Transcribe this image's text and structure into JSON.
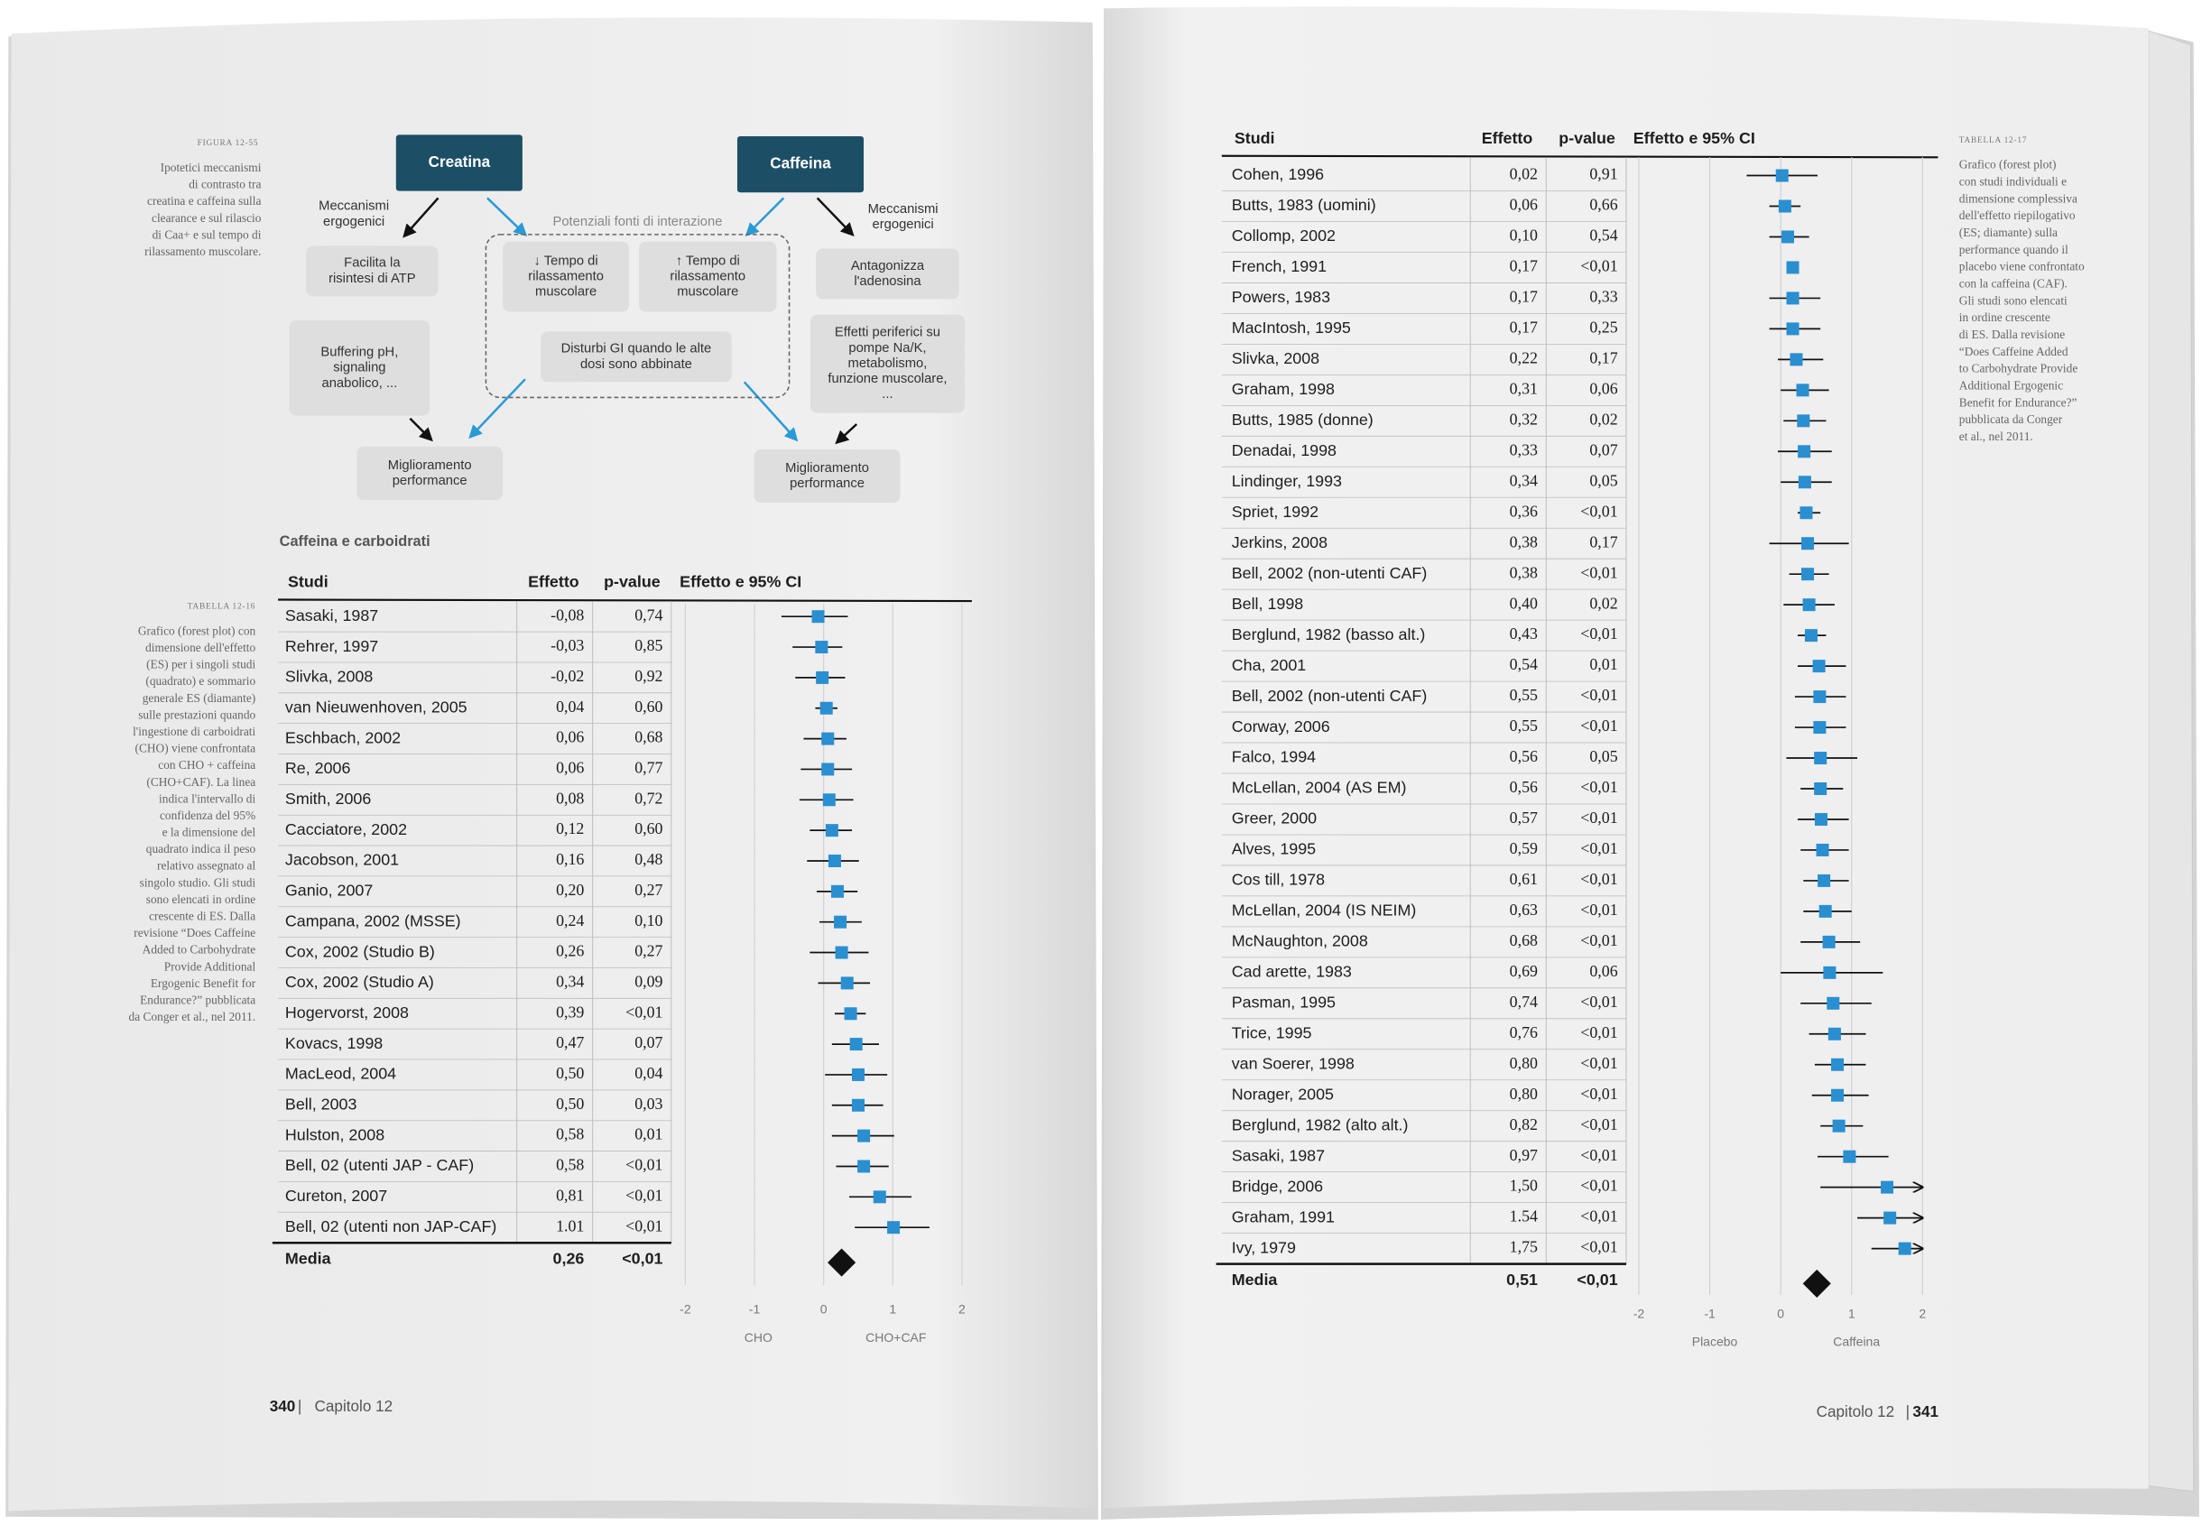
{
  "figure_caption": {
    "label": "FIGURA 12-55",
    "lines": [
      "Ipotetici meccanismi",
      "di contrasto tra",
      "creatina e caffeina sulla",
      "clearance e sul rilascio",
      "di Caa+ e sul tempo di",
      "rilassamento muscolare."
    ]
  },
  "diagram": {
    "nodes": [
      {
        "lines": [
          "Creatina"
        ]
      },
      {
        "lines": [
          "Caffeina"
        ]
      },
      {
        "lines": [
          "Meccanismi",
          "ergogenici"
        ]
      },
      {
        "lines": [
          "Meccanismi",
          "ergogenici"
        ]
      },
      {
        "lines": [
          "Potenziali fonti di interazione"
        ]
      },
      {
        "lines": [
          "Facilita la",
          "risintesi di ATP"
        ]
      },
      {
        "lines": [
          "↓ Tempo di",
          "rilassamento",
          "muscolare"
        ]
      },
      {
        "lines": [
          "↑ Tempo di",
          "rilassamento",
          "muscolare"
        ]
      },
      {
        "lines": [
          "Antagonizza",
          "l'adenosina"
        ]
      },
      {
        "lines": [
          "Buffering pH,",
          "signaling",
          "anabolico, ..."
        ]
      },
      {
        "lines": [
          "Disturbi GI quando le alte",
          "dosi sono abbinate"
        ]
      },
      {
        "lines": [
          "Effetti periferici su",
          "pompe Na/K,",
          "metabolismo,",
          "funzione muscolare,",
          "..."
        ]
      },
      {
        "lines": [
          "Miglioramento",
          "performance"
        ]
      },
      {
        "lines": [
          "Miglioramento",
          "performance"
        ]
      }
    ]
  },
  "section_title": "Caffeina e carboidrati",
  "left_table": {
    "caption": {
      "label": "TABELLA 12-16",
      "lines": [
        "Grafico (forest plot) con",
        "dimensione dell'effetto",
        "(ES) per i singoli studi",
        "(quadrato) e sommario",
        "generale ES (diamante)",
        "sulle prestazioni quando",
        "l'ingestione di carboidrati",
        "(CHO) viene confrontata",
        "con CHO + caffeina",
        "(CHO+CAF). La linea",
        "indica l'intervallo di",
        "confidenza del 95%",
        "e la dimensione del",
        "quadrato indica il peso",
        "relativo assegnato al",
        "singolo studio. Gli studi",
        "sono elencati in ordine",
        "crescente di ES. Dalla",
        "revisione “Does Caffeine",
        "Added to Carbohydrate",
        "Provide Additional",
        "Ergogenic Benefit for",
        "Endurance?” pubblicata",
        "da Conger et al., nel 2011."
      ]
    },
    "columns": [
      "Studi",
      "Effetto",
      "p-value",
      "Effetto e 95% CI"
    ],
    "rows": [
      {
        "study": "Sasaki, 1987",
        "effect": -0.08,
        "effect_label": "-0,08",
        "p": "0,74",
        "ci": [
          -0.61,
          0.35
        ]
      },
      {
        "study": "Rehrer, 1997",
        "effect": -0.03,
        "effect_label": "-0,03",
        "p": "0,85",
        "ci": [
          -0.45,
          0.27
        ]
      },
      {
        "study": "Slivka, 2008",
        "effect": -0.02,
        "effect_label": "-0,02",
        "p": "0,92",
        "ci": [
          -0.41,
          0.31
        ]
      },
      {
        "study": "van Nieuwenhoven, 2005",
        "effect": 0.04,
        "effect_label": "0,04",
        "p": "0,60",
        "ci": [
          -0.12,
          0.2
        ]
      },
      {
        "study": "Eschbach, 2002",
        "effect": 0.06,
        "effect_label": "0,06",
        "p": "0,68",
        "ci": [
          -0.29,
          0.33
        ]
      },
      {
        "study": "Re, 2006",
        "effect": 0.06,
        "effect_label": "0,06",
        "p": "0,77",
        "ci": [
          -0.33,
          0.41
        ]
      },
      {
        "study": "Smith, 2006",
        "effect": 0.08,
        "effect_label": "0,08",
        "p": "0,72",
        "ci": [
          -0.35,
          0.43
        ]
      },
      {
        "study": "Cacciatore, 2002",
        "effect": 0.12,
        "effect_label": "0,12",
        "p": "0,60",
        "ci": [
          -0.2,
          0.41
        ]
      },
      {
        "study": "Jacobson, 2001",
        "effect": 0.16,
        "effect_label": "0,16",
        "p": "0,48",
        "ci": [
          -0.24,
          0.51
        ]
      },
      {
        "study": "Ganio, 2007",
        "effect": 0.2,
        "effect_label": "0,20",
        "p": "0,27",
        "ci": [
          -0.1,
          0.49
        ]
      },
      {
        "study": "Campana, 2002 (MSSE)",
        "effect": 0.24,
        "effect_label": "0,24",
        "p": "0,10",
        "ci": [
          -0.06,
          0.55
        ]
      },
      {
        "study": "Cox, 2002 (Studio B)",
        "effect": 0.26,
        "effect_label": "0,26",
        "p": "0,27",
        "ci": [
          -0.2,
          0.65
        ]
      },
      {
        "study": "Cox, 2002 (Studio A)",
        "effect": 0.34,
        "effect_label": "0,34",
        "p": "0,09",
        "ci": [
          -0.08,
          0.67
        ]
      },
      {
        "study": "Hogervorst, 2008",
        "effect": 0.39,
        "effect_label": "0,39",
        "p": "<0,01",
        "ci": [
          0.16,
          0.61
        ]
      },
      {
        "study": "Kovacs, 1998",
        "effect": 0.47,
        "effect_label": "0,47",
        "p": "0,07",
        "ci": [
          0.12,
          0.8
        ]
      },
      {
        "study": "MacLeod, 2004",
        "effect": 0.5,
        "effect_label": "0,50",
        "p": "0,04",
        "ci": [
          0.02,
          0.92
        ]
      },
      {
        "study": "Bell, 2003",
        "effect": 0.5,
        "effect_label": "0,50",
        "p": "0,03",
        "ci": [
          0.12,
          0.86
        ]
      },
      {
        "study": "Hulston, 2008",
        "effect": 0.58,
        "effect_label": "0,58",
        "p": "0,01",
        "ci": [
          0.12,
          1.02
        ]
      },
      {
        "study": "Bell, 02 (utenti JAP - CAF)",
        "effect": 0.58,
        "effect_label": "0,58",
        "p": "<0,01",
        "ci": [
          0.18,
          0.94
        ]
      },
      {
        "study": "Cureton, 2007",
        "effect": 0.81,
        "effect_label": "0,81",
        "p": "<0,01",
        "ci": [
          0.37,
          1.27
        ]
      },
      {
        "study": "Bell, 02 (utenti non JAP-CAF)",
        "effect": 1.01,
        "effect_label": "1.01",
        "p": "<0,01",
        "ci": [
          0.45,
          1.53
        ]
      }
    ],
    "summary": {
      "study": "Media",
      "effect": 0.26,
      "effect_label": "0,26",
      "p": "<0,01"
    },
    "xlim": [
      -2,
      2
    ],
    "xticks": [
      -2,
      -1,
      0,
      1,
      2
    ],
    "axis_labels": [
      "CHO",
      "CHO+CAF"
    ]
  },
  "right_table": {
    "caption": {
      "label": "TABELLA 12-17",
      "lines": [
        "Grafico (forest plot)",
        "con studi individuali e",
        "dimensione complessiva",
        "dell'effetto riepilogativo",
        "(ES; diamante) sulla",
        "performance quando il",
        "placebo viene confrontato",
        "con la caffeina (CAF).",
        "Gli studi sono elencati",
        "in ordine crescente",
        "di ES. Dalla revisione",
        "“Does Caffeine Added",
        "to Carbohydrate Provide",
        "Additional Ergogenic",
        "Benefit for Endurance?”",
        "pubblicata da Conger",
        "et al., nel 2011."
      ]
    },
    "columns": [
      "Studi",
      "Effetto",
      "p-value",
      "Effetto e 95% CI"
    ],
    "rows": [
      {
        "study": "Cohen, 1996",
        "effect": 0.02,
        "effect_label": "0,02",
        "p": "0,91",
        "ci": [
          -0.48,
          0.52
        ]
      },
      {
        "study": "Butts, 1983 (uomini)",
        "effect": 0.06,
        "effect_label": "0,06",
        "p": "0,66",
        "ci": [
          -0.16,
          0.28
        ]
      },
      {
        "study": "Collomp, 2002",
        "effect": 0.1,
        "effect_label": "0,10",
        "p": "0,54",
        "ci": [
          -0.16,
          0.4
        ]
      },
      {
        "study": "French, 1991",
        "effect": 0.17,
        "effect_label": "0,17",
        "p": "<0,01",
        "ci": [
          0.1,
          0.24
        ]
      },
      {
        "study": "Powers, 1983",
        "effect": 0.17,
        "effect_label": "0,17",
        "p": "0,33",
        "ci": [
          -0.16,
          0.56
        ]
      },
      {
        "study": "MacIntosh, 1995",
        "effect": 0.17,
        "effect_label": "0,17",
        "p": "0,25",
        "ci": [
          -0.16,
          0.56
        ]
      },
      {
        "study": "Slivka, 2008",
        "effect": 0.22,
        "effect_label": "0,22",
        "p": "0,17",
        "ci": [
          -0.04,
          0.6
        ]
      },
      {
        "study": "Graham, 1998",
        "effect": 0.31,
        "effect_label": "0,31",
        "p": "0,06",
        "ci": [
          0,
          0.68
        ]
      },
      {
        "study": "Butts, 1985 (donne)",
        "effect": 0.32,
        "effect_label": "0,32",
        "p": "0,02",
        "ci": [
          0.04,
          0.64
        ]
      },
      {
        "study": "Denadai, 1998",
        "effect": 0.33,
        "effect_label": "0,33",
        "p": "0,07",
        "ci": [
          -0.04,
          0.72
        ]
      },
      {
        "study": "Lindinger, 1993",
        "effect": 0.34,
        "effect_label": "0,34",
        "p": "0,05",
        "ci": [
          0,
          0.72
        ]
      },
      {
        "study": "Spriet, 1992",
        "effect": 0.36,
        "effect_label": "0,36",
        "p": "<0,01",
        "ci": [
          0.24,
          0.56
        ]
      },
      {
        "study": "Jerkins, 2008",
        "effect": 0.38,
        "effect_label": "0,38",
        "p": "0,17",
        "ci": [
          -0.16,
          0.96
        ]
      },
      {
        "study": "Bell, 2002 (non-utenti CAF)",
        "effect": 0.38,
        "effect_label": "0,38",
        "p": "<0,01",
        "ci": [
          0.12,
          0.68
        ]
      },
      {
        "study": "Bell, 1998",
        "effect": 0.4,
        "effect_label": "0,40",
        "p": "0,02",
        "ci": [
          0.04,
          0.76
        ]
      },
      {
        "study": "Berglund, 1982 (basso alt.)",
        "effect": 0.43,
        "effect_label": "0,43",
        "p": "<0,01",
        "ci": [
          0.24,
          0.64
        ]
      },
      {
        "study": "Cha, 2001",
        "effect": 0.54,
        "effect_label": "0,54",
        "p": "0,01",
        "ci": [
          0.24,
          0.92
        ]
      },
      {
        "study": "Bell, 2002 (non-utenti CAF)",
        "effect": 0.55,
        "effect_label": "0,55",
        "p": "<0,01",
        "ci": [
          0.2,
          0.92
        ]
      },
      {
        "study": "Corway, 2006",
        "effect": 0.55,
        "effect_label": "0,55",
        "p": "<0,01",
        "ci": [
          0.2,
          0.92
        ]
      },
      {
        "study": "Falco, 1994",
        "effect": 0.56,
        "effect_label": "0,56",
        "p": "0,05",
        "ci": [
          0.08,
          1.08
        ]
      },
      {
        "study": "McLellan, 2004 (AS EM)",
        "effect": 0.56,
        "effect_label": "0,56",
        "p": "<0,01",
        "ci": [
          0.28,
          0.88
        ]
      },
      {
        "study": "Greer, 2000",
        "effect": 0.57,
        "effect_label": "0,57",
        "p": "<0,01",
        "ci": [
          0.24,
          0.96
        ]
      },
      {
        "study": "Alves, 1995",
        "effect": 0.59,
        "effect_label": "0,59",
        "p": "<0,01",
        "ci": [
          0.28,
          0.96
        ]
      },
      {
        "study": "Cos till, 1978",
        "effect": 0.61,
        "effect_label": "0,61",
        "p": "<0,01",
        "ci": [
          0.32,
          0.96
        ]
      },
      {
        "study": "McLellan, 2004 (IS NEIM)",
        "effect": 0.63,
        "effect_label": "0,63",
        "p": "<0,01",
        "ci": [
          0.32,
          1
        ]
      },
      {
        "study": "McNaughton, 2008",
        "effect": 0.68,
        "effect_label": "0,68",
        "p": "<0,01",
        "ci": [
          0.28,
          1.12
        ]
      },
      {
        "study": "Cad arette, 1983",
        "effect": 0.69,
        "effect_label": "0,69",
        "p": "0,06",
        "ci": [
          0,
          1.44
        ]
      },
      {
        "study": "Pasman, 1995",
        "effect": 0.74,
        "effect_label": "0,74",
        "p": "<0,01",
        "ci": [
          0.28,
          1.28
        ]
      },
      {
        "study": "Trice, 1995",
        "effect": 0.76,
        "effect_label": "0,76",
        "p": "<0,01",
        "ci": [
          0.4,
          1.2
        ]
      },
      {
        "study": "van Soerer, 1998",
        "effect": 0.8,
        "effect_label": "0,80",
        "p": "<0,01",
        "ci": [
          0.48,
          1.2
        ]
      },
      {
        "study": "Norager, 2005",
        "effect": 0.8,
        "effect_label": "0,80",
        "p": "<0,01",
        "ci": [
          0.44,
          1.24
        ]
      },
      {
        "study": "Berglund, 1982 (alto alt.)",
        "effect": 0.82,
        "effect_label": "0,82",
        "p": "<0,01",
        "ci": [
          0.56,
          1.16
        ]
      },
      {
        "study": "Sasaki, 1987",
        "effect": 0.97,
        "effect_label": "0,97",
        "p": "<0,01",
        "ci": [
          0.52,
          1.52
        ]
      },
      {
        "study": "Bridge, 2006",
        "effect": 1.5,
        "effect_label": "1,50",
        "p": "<0,01",
        "ci": [
          0.56,
          2.3
        ]
      },
      {
        "study": "Graham, 1991",
        "effect": 1.54,
        "effect_label": "1.54",
        "p": "<0,01",
        "ci": [
          1.08,
          2.3
        ]
      },
      {
        "study": "Ivy, 1979",
        "effect": 1.75,
        "effect_label": "1,75",
        "p": "<0,01",
        "ci": [
          1.28,
          2.4
        ]
      }
    ],
    "summary": {
      "study": "Media",
      "effect": 0.51,
      "effect_label": "0,51",
      "p": "<0,01"
    },
    "xlim": [
      -2,
      2
    ],
    "xticks": [
      -2,
      -1,
      0,
      1,
      2
    ],
    "axis_labels": [
      "Placebo",
      "Caffeina"
    ]
  },
  "footer_left": {
    "page": "340",
    "chapter": "Capitolo 12"
  },
  "footer_right": {
    "page": "341",
    "chapter": "Capitolo 12"
  }
}
